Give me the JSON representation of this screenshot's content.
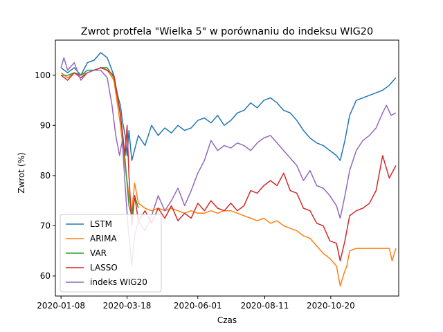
{
  "chart_data": {
    "type": "line",
    "title": "Zwrot protfela \"Wielka 5\" w porównaniu do indeksu WIG20",
    "xlabel": "Czas",
    "ylabel": "Zwrot (%)",
    "x_tick_labels": [
      "2020-01-08",
      "2020-03-18",
      "2020-06-01",
      "2020-08-11",
      "2020-10-20"
    ],
    "x_ticks": [
      "2020-01-08",
      "2020-03-18",
      "2020-06-01",
      "2020-08-11",
      "2020-10-20"
    ],
    "xlim": [
      "2020-01-02",
      "2020-12-31"
    ],
    "y_ticks": [
      60,
      70,
      80,
      90,
      100
    ],
    "ylim": [
      56,
      107
    ],
    "grid": false,
    "legend_position": "lower-left",
    "series": [
      {
        "name": " LSTM",
        "color": "#1f77b4",
        "points": [
          [
            "2020-01-08",
            101.5
          ],
          [
            "2020-01-15",
            100.5
          ],
          [
            "2020-01-22",
            101.5
          ],
          [
            "2020-01-29",
            100.0
          ],
          [
            "2020-02-05",
            102.5
          ],
          [
            "2020-02-12",
            103.0
          ],
          [
            "2020-02-19",
            104.5
          ],
          [
            "2020-02-26",
            103.5
          ],
          [
            "2020-03-04",
            100.0
          ],
          [
            "2020-03-08",
            96.0
          ],
          [
            "2020-03-11",
            94.0
          ],
          [
            "2020-03-13",
            91.0
          ],
          [
            "2020-03-16",
            88.0
          ],
          [
            "2020-03-18",
            84.0
          ],
          [
            "2020-03-20",
            89.0
          ],
          [
            "2020-03-23",
            83.0
          ],
          [
            "2020-03-30",
            88.0
          ],
          [
            "2020-04-06",
            86.0
          ],
          [
            "2020-04-13",
            90.0
          ],
          [
            "2020-04-20",
            88.0
          ],
          [
            "2020-04-27",
            89.5
          ],
          [
            "2020-05-04",
            88.5
          ],
          [
            "2020-05-11",
            90.0
          ],
          [
            "2020-05-18",
            89.0
          ],
          [
            "2020-05-25",
            89.5
          ],
          [
            "2020-06-01",
            91.0
          ],
          [
            "2020-06-08",
            91.5
          ],
          [
            "2020-06-15",
            90.5
          ],
          [
            "2020-06-22",
            92.0
          ],
          [
            "2020-06-29",
            90.0
          ],
          [
            "2020-07-06",
            91.0
          ],
          [
            "2020-07-13",
            92.5
          ],
          [
            "2020-07-20",
            93.0
          ],
          [
            "2020-07-27",
            94.5
          ],
          [
            "2020-08-03",
            93.5
          ],
          [
            "2020-08-10",
            95.0
          ],
          [
            "2020-08-17",
            95.5
          ],
          [
            "2020-08-24",
            94.5
          ],
          [
            "2020-08-31",
            93.0
          ],
          [
            "2020-09-07",
            92.5
          ],
          [
            "2020-09-14",
            91.0
          ],
          [
            "2020-09-21",
            89.0
          ],
          [
            "2020-09-28",
            87.5
          ],
          [
            "2020-10-05",
            86.5
          ],
          [
            "2020-10-12",
            86.0
          ],
          [
            "2020-10-19",
            85.0
          ],
          [
            "2020-10-26",
            84.0
          ],
          [
            "2020-10-30",
            83.0
          ],
          [
            "2020-11-04",
            87.0
          ],
          [
            "2020-11-09",
            92.0
          ],
          [
            "2020-11-16",
            95.0
          ],
          [
            "2020-11-23",
            95.5
          ],
          [
            "2020-11-30",
            96.0
          ],
          [
            "2020-12-07",
            96.5
          ],
          [
            "2020-12-14",
            97.0
          ],
          [
            "2020-12-21",
            98.0
          ],
          [
            "2020-12-28",
            99.5
          ]
        ]
      },
      {
        "name": "ARIMA",
        "color": "#ff7f0e",
        "points": [
          [
            "2020-01-08",
            100.5
          ],
          [
            "2020-01-15",
            99.5
          ],
          [
            "2020-01-22",
            100.5
          ],
          [
            "2020-01-29",
            100.0
          ],
          [
            "2020-02-05",
            100.5
          ],
          [
            "2020-02-12",
            101.0
          ],
          [
            "2020-02-19",
            101.5
          ],
          [
            "2020-02-26",
            101.0
          ],
          [
            "2020-03-04",
            99.0
          ],
          [
            "2020-03-08",
            94.0
          ],
          [
            "2020-03-11",
            90.0
          ],
          [
            "2020-03-16",
            82.0
          ],
          [
            "2020-03-20",
            76.0
          ],
          [
            "2020-03-23",
            73.0
          ],
          [
            "2020-03-26",
            78.5
          ],
          [
            "2020-03-30",
            74.5
          ],
          [
            "2020-04-06",
            73.5
          ],
          [
            "2020-04-13",
            73.0
          ],
          [
            "2020-04-20",
            73.5
          ],
          [
            "2020-04-27",
            73.0
          ],
          [
            "2020-05-04",
            73.5
          ],
          [
            "2020-05-11",
            73.0
          ],
          [
            "2020-05-18",
            72.5
          ],
          [
            "2020-05-25",
            73.0
          ],
          [
            "2020-06-01",
            72.5
          ],
          [
            "2020-06-08",
            72.5
          ],
          [
            "2020-06-15",
            73.0
          ],
          [
            "2020-06-22",
            72.5
          ],
          [
            "2020-06-29",
            73.0
          ],
          [
            "2020-07-06",
            73.0
          ],
          [
            "2020-07-13",
            72.5
          ],
          [
            "2020-07-20",
            72.0
          ],
          [
            "2020-07-27",
            71.5
          ],
          [
            "2020-08-03",
            71.0
          ],
          [
            "2020-08-10",
            71.5
          ],
          [
            "2020-08-17",
            70.5
          ],
          [
            "2020-08-24",
            71.0
          ],
          [
            "2020-08-31",
            70.0
          ],
          [
            "2020-09-07",
            69.5
          ],
          [
            "2020-09-14",
            69.0
          ],
          [
            "2020-09-21",
            68.0
          ],
          [
            "2020-09-28",
            67.5
          ],
          [
            "2020-10-05",
            66.0
          ],
          [
            "2020-10-12",
            64.5
          ],
          [
            "2020-10-19",
            63.5
          ],
          [
            "2020-10-26",
            62.0
          ],
          [
            "2020-10-30",
            58.0
          ],
          [
            "2020-11-03",
            60.5
          ],
          [
            "2020-11-06",
            62.0
          ],
          [
            "2020-11-09",
            65.0
          ],
          [
            "2020-11-16",
            65.5
          ],
          [
            "2020-11-23",
            65.5
          ],
          [
            "2020-11-30",
            65.5
          ],
          [
            "2020-12-07",
            65.5
          ],
          [
            "2020-12-14",
            65.5
          ],
          [
            "2020-12-21",
            65.5
          ],
          [
            "2020-12-24",
            63.0
          ],
          [
            "2020-12-28",
            65.5
          ]
        ]
      },
      {
        "name": "VAR",
        "color": "#2ca02c",
        "points": [
          [
            "2020-01-08",
            100.0
          ],
          [
            "2020-01-15",
            100.0
          ],
          [
            "2020-01-22",
            100.5
          ],
          [
            "2020-01-29",
            100.0
          ],
          [
            "2020-02-05",
            101.0
          ],
          [
            "2020-02-12",
            101.0
          ],
          [
            "2020-02-19",
            101.5
          ],
          [
            "2020-02-26",
            101.5
          ],
          [
            "2020-03-04",
            99.5
          ],
          [
            "2020-03-08",
            96.0
          ],
          [
            "2020-03-11",
            92.0
          ],
          [
            "2020-03-16",
            83.0
          ],
          [
            "2020-03-20",
            74.0
          ],
          [
            "2020-03-23",
            72.0
          ],
          [
            "2020-03-26",
            76.0
          ],
          [
            "2020-03-30",
            73.5
          ]
        ]
      },
      {
        "name": "LASSO",
        "color": "#d62728",
        "points": [
          [
            "2020-01-08",
            100.0
          ],
          [
            "2020-01-15",
            99.0
          ],
          [
            "2020-01-22",
            100.5
          ],
          [
            "2020-01-29",
            99.5
          ],
          [
            "2020-02-05",
            100.5
          ],
          [
            "2020-02-12",
            101.0
          ],
          [
            "2020-02-19",
            101.5
          ],
          [
            "2020-02-26",
            101.0
          ],
          [
            "2020-03-04",
            100.0
          ],
          [
            "2020-03-08",
            95.5
          ],
          [
            "2020-03-11",
            92.0
          ],
          [
            "2020-03-16",
            84.0
          ],
          [
            "2020-03-18",
            90.0
          ],
          [
            "2020-03-20",
            80.0
          ],
          [
            "2020-03-23",
            70.0
          ],
          [
            "2020-03-26",
            76.0
          ],
          [
            "2020-03-30",
            71.0
          ],
          [
            "2020-04-06",
            73.0
          ],
          [
            "2020-04-13",
            70.5
          ],
          [
            "2020-04-20",
            73.5
          ],
          [
            "2020-04-27",
            71.5
          ],
          [
            "2020-05-04",
            74.0
          ],
          [
            "2020-05-11",
            71.0
          ],
          [
            "2020-05-18",
            72.5
          ],
          [
            "2020-05-25",
            71.5
          ],
          [
            "2020-06-01",
            74.5
          ],
          [
            "2020-06-08",
            73.0
          ],
          [
            "2020-06-15",
            75.0
          ],
          [
            "2020-06-22",
            73.5
          ],
          [
            "2020-06-29",
            73.0
          ],
          [
            "2020-07-06",
            74.5
          ],
          [
            "2020-07-13",
            73.0
          ],
          [
            "2020-07-20",
            74.0
          ],
          [
            "2020-07-27",
            77.0
          ],
          [
            "2020-08-03",
            76.5
          ],
          [
            "2020-08-10",
            78.0
          ],
          [
            "2020-08-17",
            79.0
          ],
          [
            "2020-08-24",
            78.0
          ],
          [
            "2020-08-31",
            80.5
          ],
          [
            "2020-09-07",
            77.0
          ],
          [
            "2020-09-14",
            76.5
          ],
          [
            "2020-09-21",
            73.5
          ],
          [
            "2020-09-28",
            73.0
          ],
          [
            "2020-10-05",
            70.5
          ],
          [
            "2020-10-12",
            70.0
          ],
          [
            "2020-10-19",
            67.0
          ],
          [
            "2020-10-26",
            66.5
          ],
          [
            "2020-10-30",
            63.0
          ],
          [
            "2020-11-04",
            67.0
          ],
          [
            "2020-11-09",
            72.0
          ],
          [
            "2020-11-16",
            73.0
          ],
          [
            "2020-11-23",
            73.5
          ],
          [
            "2020-11-30",
            74.5
          ],
          [
            "2020-12-07",
            77.0
          ],
          [
            "2020-12-14",
            84.0
          ],
          [
            "2020-12-21",
            79.5
          ],
          [
            "2020-12-28",
            82.0
          ]
        ]
      },
      {
        "name": "indeks WIG20",
        "color": "#9467bd",
        "points": [
          [
            "2020-01-08",
            101.5
          ],
          [
            "2020-01-11",
            103.5
          ],
          [
            "2020-01-15",
            101.0
          ],
          [
            "2020-01-22",
            102.5
          ],
          [
            "2020-01-29",
            99.0
          ],
          [
            "2020-02-05",
            100.5
          ],
          [
            "2020-02-12",
            101.0
          ],
          [
            "2020-02-19",
            101.0
          ],
          [
            "2020-02-26",
            99.5
          ],
          [
            "2020-03-02",
            94.0
          ],
          [
            "2020-03-06",
            88.0
          ],
          [
            "2020-03-10",
            84.0
          ],
          [
            "2020-03-13",
            87.0
          ],
          [
            "2020-03-16",
            78.0
          ],
          [
            "2020-03-19",
            70.0
          ],
          [
            "2020-03-23",
            62.0
          ],
          [
            "2020-03-26",
            68.0
          ],
          [
            "2020-03-30",
            71.0
          ],
          [
            "2020-04-06",
            69.0
          ],
          [
            "2020-04-13",
            72.0
          ],
          [
            "2020-04-20",
            76.0
          ],
          [
            "2020-04-27",
            73.0
          ],
          [
            "2020-05-04",
            75.0
          ],
          [
            "2020-05-11",
            77.5
          ],
          [
            "2020-05-18",
            74.0
          ],
          [
            "2020-05-25",
            77.0
          ],
          [
            "2020-06-01",
            80.5
          ],
          [
            "2020-06-08",
            83.0
          ],
          [
            "2020-06-15",
            87.0
          ],
          [
            "2020-06-22",
            85.0
          ],
          [
            "2020-06-29",
            86.0
          ],
          [
            "2020-07-06",
            85.5
          ],
          [
            "2020-07-13",
            86.5
          ],
          [
            "2020-07-20",
            86.0
          ],
          [
            "2020-07-27",
            85.0
          ],
          [
            "2020-08-03",
            86.5
          ],
          [
            "2020-08-10",
            87.5
          ],
          [
            "2020-08-17",
            88.0
          ],
          [
            "2020-08-24",
            86.5
          ],
          [
            "2020-08-31",
            85.0
          ],
          [
            "2020-09-07",
            83.5
          ],
          [
            "2020-09-14",
            82.0
          ],
          [
            "2020-09-21",
            79.0
          ],
          [
            "2020-09-28",
            81.0
          ],
          [
            "2020-10-05",
            78.0
          ],
          [
            "2020-10-12",
            77.5
          ],
          [
            "2020-10-19",
            76.0
          ],
          [
            "2020-10-26",
            74.0
          ],
          [
            "2020-10-30",
            71.5
          ],
          [
            "2020-11-04",
            76.0
          ],
          [
            "2020-11-09",
            81.0
          ],
          [
            "2020-11-16",
            85.0
          ],
          [
            "2020-11-23",
            87.0
          ],
          [
            "2020-11-30",
            88.0
          ],
          [
            "2020-12-07",
            89.5
          ],
          [
            "2020-12-14",
            92.5
          ],
          [
            "2020-12-18",
            94.0
          ],
          [
            "2020-12-23",
            92.0
          ],
          [
            "2020-12-28",
            92.5
          ]
        ]
      }
    ]
  }
}
